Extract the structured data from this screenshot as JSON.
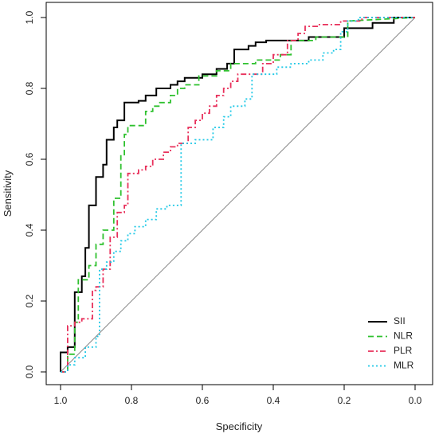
{
  "chart_data": {
    "type": "line",
    "xlabel": "Specificity",
    "ylabel": "Sensitivity",
    "xlim": [
      1.0,
      0.0
    ],
    "ylim": [
      0.0,
      1.0
    ],
    "x_ticks": [
      "1.0",
      "0.8",
      "0.6",
      "0.4",
      "0.2",
      "0.0"
    ],
    "y_ticks": [
      "0.0",
      "0.2",
      "0.4",
      "0.6",
      "0.8",
      "1.0"
    ],
    "grid": false,
    "legend_position": "bottom-right",
    "reference_line": [
      [
        1.0,
        0.0
      ],
      [
        0.0,
        1.0
      ]
    ],
    "series": [
      {
        "name": "SII",
        "color": "#000000",
        "style": "solid",
        "points": [
          [
            1.0,
            0.0
          ],
          [
            1.0,
            0.055
          ],
          [
            0.98,
            0.055
          ],
          [
            0.98,
            0.07
          ],
          [
            0.96,
            0.07
          ],
          [
            0.96,
            0.225
          ],
          [
            0.94,
            0.225
          ],
          [
            0.94,
            0.27
          ],
          [
            0.93,
            0.27
          ],
          [
            0.93,
            0.35
          ],
          [
            0.92,
            0.35
          ],
          [
            0.92,
            0.47
          ],
          [
            0.9,
            0.47
          ],
          [
            0.9,
            0.55
          ],
          [
            0.88,
            0.55
          ],
          [
            0.88,
            0.585
          ],
          [
            0.87,
            0.585
          ],
          [
            0.87,
            0.655
          ],
          [
            0.85,
            0.655
          ],
          [
            0.85,
            0.69
          ],
          [
            0.84,
            0.69
          ],
          [
            0.84,
            0.71
          ],
          [
            0.82,
            0.71
          ],
          [
            0.82,
            0.76
          ],
          [
            0.78,
            0.76
          ],
          [
            0.78,
            0.765
          ],
          [
            0.76,
            0.765
          ],
          [
            0.76,
            0.78
          ],
          [
            0.73,
            0.78
          ],
          [
            0.73,
            0.8
          ],
          [
            0.69,
            0.8
          ],
          [
            0.69,
            0.81
          ],
          [
            0.67,
            0.81
          ],
          [
            0.67,
            0.82
          ],
          [
            0.65,
            0.82
          ],
          [
            0.65,
            0.83
          ],
          [
            0.6,
            0.83
          ],
          [
            0.6,
            0.84
          ],
          [
            0.56,
            0.84
          ],
          [
            0.56,
            0.855
          ],
          [
            0.53,
            0.855
          ],
          [
            0.53,
            0.87
          ],
          [
            0.51,
            0.87
          ],
          [
            0.51,
            0.91
          ],
          [
            0.47,
            0.91
          ],
          [
            0.47,
            0.92
          ],
          [
            0.45,
            0.92
          ],
          [
            0.45,
            0.93
          ],
          [
            0.42,
            0.93
          ],
          [
            0.42,
            0.935
          ],
          [
            0.3,
            0.935
          ],
          [
            0.3,
            0.945
          ],
          [
            0.2,
            0.945
          ],
          [
            0.2,
            0.97
          ],
          [
            0.12,
            0.97
          ],
          [
            0.12,
            0.985
          ],
          [
            0.06,
            0.985
          ],
          [
            0.06,
            1.0
          ],
          [
            0.0,
            1.0
          ]
        ]
      },
      {
        "name": "NLR",
        "color": "#2fc12f",
        "style": "dashed",
        "points": [
          [
            1.0,
            0.0
          ],
          [
            0.98,
            0.0
          ],
          [
            0.98,
            0.05
          ],
          [
            0.96,
            0.05
          ],
          [
            0.96,
            0.14
          ],
          [
            0.95,
            0.14
          ],
          [
            0.95,
            0.26
          ],
          [
            0.92,
            0.26
          ],
          [
            0.92,
            0.3
          ],
          [
            0.9,
            0.3
          ],
          [
            0.9,
            0.36
          ],
          [
            0.88,
            0.36
          ],
          [
            0.88,
            0.4
          ],
          [
            0.85,
            0.4
          ],
          [
            0.85,
            0.49
          ],
          [
            0.83,
            0.49
          ],
          [
            0.83,
            0.61
          ],
          [
            0.82,
            0.61
          ],
          [
            0.82,
            0.67
          ],
          [
            0.81,
            0.67
          ],
          [
            0.81,
            0.695
          ],
          [
            0.76,
            0.695
          ],
          [
            0.76,
            0.735
          ],
          [
            0.74,
            0.735
          ],
          [
            0.74,
            0.75
          ],
          [
            0.72,
            0.75
          ],
          [
            0.72,
            0.76
          ],
          [
            0.69,
            0.76
          ],
          [
            0.69,
            0.78
          ],
          [
            0.67,
            0.78
          ],
          [
            0.67,
            0.8
          ],
          [
            0.65,
            0.8
          ],
          [
            0.65,
            0.81
          ],
          [
            0.61,
            0.81
          ],
          [
            0.61,
            0.835
          ],
          [
            0.56,
            0.835
          ],
          [
            0.56,
            0.85
          ],
          [
            0.52,
            0.85
          ],
          [
            0.52,
            0.87
          ],
          [
            0.45,
            0.87
          ],
          [
            0.45,
            0.88
          ],
          [
            0.38,
            0.88
          ],
          [
            0.38,
            0.895
          ],
          [
            0.35,
            0.895
          ],
          [
            0.35,
            0.935
          ],
          [
            0.28,
            0.935
          ],
          [
            0.28,
            0.945
          ],
          [
            0.19,
            0.945
          ],
          [
            0.19,
            0.99
          ],
          [
            0.0,
            1.0
          ]
        ]
      },
      {
        "name": "PLR",
        "color": "#e8305b",
        "style": "dashdot",
        "points": [
          [
            1.0,
            0.0
          ],
          [
            0.98,
            0.0
          ],
          [
            0.98,
            0.13
          ],
          [
            0.96,
            0.13
          ],
          [
            0.96,
            0.14
          ],
          [
            0.94,
            0.14
          ],
          [
            0.94,
            0.15
          ],
          [
            0.91,
            0.15
          ],
          [
            0.91,
            0.23
          ],
          [
            0.9,
            0.23
          ],
          [
            0.9,
            0.24
          ],
          [
            0.88,
            0.24
          ],
          [
            0.88,
            0.29
          ],
          [
            0.86,
            0.29
          ],
          [
            0.86,
            0.38
          ],
          [
            0.84,
            0.38
          ],
          [
            0.84,
            0.45
          ],
          [
            0.82,
            0.45
          ],
          [
            0.82,
            0.47
          ],
          [
            0.81,
            0.47
          ],
          [
            0.81,
            0.56
          ],
          [
            0.78,
            0.56
          ],
          [
            0.78,
            0.57
          ],
          [
            0.76,
            0.57
          ],
          [
            0.76,
            0.58
          ],
          [
            0.74,
            0.58
          ],
          [
            0.74,
            0.6
          ],
          [
            0.71,
            0.6
          ],
          [
            0.71,
            0.62
          ],
          [
            0.69,
            0.62
          ],
          [
            0.69,
            0.635
          ],
          [
            0.67,
            0.635
          ],
          [
            0.67,
            0.645
          ],
          [
            0.64,
            0.645
          ],
          [
            0.64,
            0.69
          ],
          [
            0.62,
            0.69
          ],
          [
            0.62,
            0.71
          ],
          [
            0.6,
            0.71
          ],
          [
            0.6,
            0.73
          ],
          [
            0.58,
            0.73
          ],
          [
            0.58,
            0.75
          ],
          [
            0.56,
            0.75
          ],
          [
            0.56,
            0.78
          ],
          [
            0.54,
            0.78
          ],
          [
            0.54,
            0.8
          ],
          [
            0.52,
            0.8
          ],
          [
            0.52,
            0.82
          ],
          [
            0.5,
            0.82
          ],
          [
            0.5,
            0.84
          ],
          [
            0.43,
            0.84
          ],
          [
            0.43,
            0.87
          ],
          [
            0.4,
            0.87
          ],
          [
            0.4,
            0.895
          ],
          [
            0.36,
            0.895
          ],
          [
            0.36,
            0.935
          ],
          [
            0.33,
            0.935
          ],
          [
            0.33,
            0.955
          ],
          [
            0.31,
            0.955
          ],
          [
            0.31,
            0.975
          ],
          [
            0.27,
            0.975
          ],
          [
            0.27,
            0.98
          ],
          [
            0.21,
            0.98
          ],
          [
            0.21,
            0.99
          ],
          [
            0.15,
            0.99
          ],
          [
            0.15,
            1.0
          ],
          [
            0.0,
            1.0
          ]
        ]
      },
      {
        "name": "MLR",
        "color": "#1ec8e6",
        "style": "dotted",
        "points": [
          [
            1.0,
            0.0
          ],
          [
            0.98,
            0.0
          ],
          [
            0.98,
            0.02
          ],
          [
            0.96,
            0.02
          ],
          [
            0.96,
            0.04
          ],
          [
            0.93,
            0.04
          ],
          [
            0.93,
            0.07
          ],
          [
            0.9,
            0.07
          ],
          [
            0.9,
            0.1
          ],
          [
            0.89,
            0.1
          ],
          [
            0.89,
            0.29
          ],
          [
            0.87,
            0.29
          ],
          [
            0.87,
            0.31
          ],
          [
            0.85,
            0.31
          ],
          [
            0.85,
            0.34
          ],
          [
            0.83,
            0.34
          ],
          [
            0.83,
            0.37
          ],
          [
            0.81,
            0.37
          ],
          [
            0.81,
            0.39
          ],
          [
            0.79,
            0.39
          ],
          [
            0.79,
            0.41
          ],
          [
            0.76,
            0.41
          ],
          [
            0.76,
            0.43
          ],
          [
            0.73,
            0.43
          ],
          [
            0.73,
            0.46
          ],
          [
            0.7,
            0.46
          ],
          [
            0.7,
            0.47
          ],
          [
            0.66,
            0.47
          ],
          [
            0.66,
            0.645
          ],
          [
            0.62,
            0.645
          ],
          [
            0.62,
            0.655
          ],
          [
            0.57,
            0.655
          ],
          [
            0.57,
            0.69
          ],
          [
            0.54,
            0.69
          ],
          [
            0.54,
            0.72
          ],
          [
            0.52,
            0.72
          ],
          [
            0.52,
            0.75
          ],
          [
            0.48,
            0.75
          ],
          [
            0.48,
            0.77
          ],
          [
            0.46,
            0.77
          ],
          [
            0.46,
            0.84
          ],
          [
            0.39,
            0.84
          ],
          [
            0.39,
            0.86
          ],
          [
            0.35,
            0.86
          ],
          [
            0.35,
            0.87
          ],
          [
            0.3,
            0.87
          ],
          [
            0.3,
            0.88
          ],
          [
            0.26,
            0.88
          ],
          [
            0.26,
            0.9
          ],
          [
            0.23,
            0.9
          ],
          [
            0.23,
            0.91
          ],
          [
            0.21,
            0.91
          ],
          [
            0.21,
            0.96
          ],
          [
            0.19,
            0.96
          ],
          [
            0.19,
            0.99
          ],
          [
            0.16,
            0.99
          ],
          [
            0.16,
            1.0
          ],
          [
            0.0,
            1.0
          ]
        ]
      }
    ]
  }
}
